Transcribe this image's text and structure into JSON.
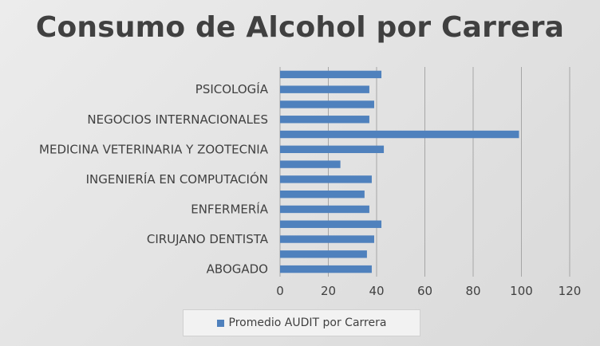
{
  "chart_data": {
    "type": "bar",
    "orientation": "horizontal",
    "title": "Consumo de Alcohol por Carrera",
    "xlabel": "",
    "ylabel": "",
    "xlim": [
      0,
      120
    ],
    "x_ticks": [
      "0",
      "20",
      "40",
      "60",
      "80",
      "100",
      "120"
    ],
    "grid": true,
    "legend_position": "bottom",
    "bar_color": "#4f81bd",
    "categories": [
      "ABOGADO",
      "",
      "CIRUJANO DENTISTA",
      "",
      "ENFERMERÍA",
      "",
      "INGENIERÍA EN COMPUTACIÓN",
      "",
      "MEDICINA VETERINARIA Y ZOOTECNIA",
      "",
      "NEGOCIOS INTERNACIONALES",
      "",
      "PSICOLOGÍA",
      ""
    ],
    "series": [
      {
        "name": "Promedio AUDIT por Carrera",
        "values": [
          38,
          36,
          39,
          42,
          37,
          35,
          38,
          25,
          43,
          99,
          37,
          39,
          37,
          42
        ]
      }
    ]
  }
}
